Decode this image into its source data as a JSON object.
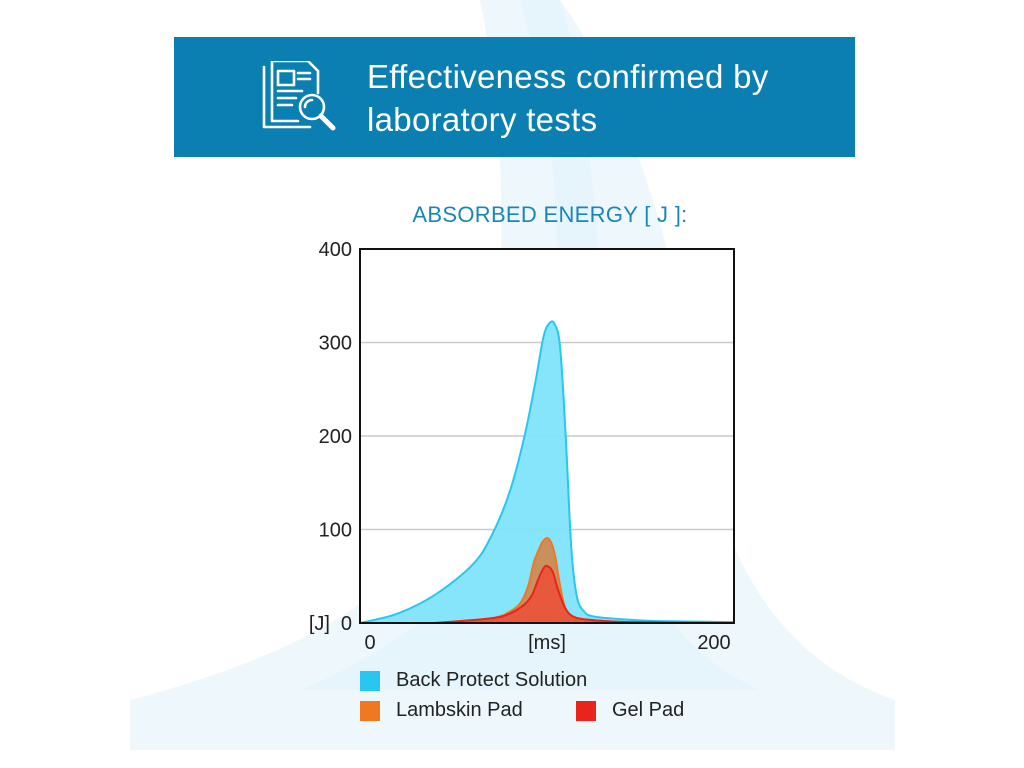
{
  "banner": {
    "title": "Effectiveness confirmed by laboratory tests",
    "icon": "document-magnifier-icon",
    "color": "#0b7fb2"
  },
  "chart_data": {
    "type": "area",
    "title": "ABSORBED ENERGY [ J ]:",
    "xlabel": "[ms]",
    "ylabel": "[J]",
    "xlim": [
      0,
      200
    ],
    "ylim": [
      0,
      400
    ],
    "x_ticks": [
      "0",
      "200"
    ],
    "y_ticks": [
      "0",
      "100",
      "200",
      "300",
      "400"
    ],
    "grid": true,
    "legend_position": "bottom",
    "series": [
      {
        "name": "Back Protect Solution",
        "color": "#29c7ef",
        "fill": "#7fe3fb",
        "x": [
          0,
          20,
          40,
          60,
          70,
          80,
          88,
          94,
          98,
          101,
          104,
          107,
          110,
          113,
          116,
          120,
          125,
          140,
          160,
          200
        ],
        "y": [
          0,
          10,
          30,
          62,
          92,
          140,
          200,
          260,
          305,
          320,
          320,
          295,
          200,
          80,
          28,
          12,
          7,
          4,
          2,
          1
        ]
      },
      {
        "name": "Lambskin Pad",
        "color": "#f07820",
        "fill": "#cc8b55",
        "x": [
          40,
          70,
          80,
          86,
          90,
          93,
          96,
          98,
          101,
          104,
          107,
          110,
          115,
          125,
          145,
          200
        ],
        "y": [
          0,
          5,
          12,
          22,
          40,
          65,
          80,
          88,
          90,
          75,
          40,
          15,
          6,
          3,
          1,
          0
        ]
      },
      {
        "name": "Gel Pad",
        "color": "#e8241c",
        "fill": "#e9553a",
        "x": [
          40,
          70,
          80,
          88,
          92,
          95,
          98,
          100,
          103,
          106,
          110,
          115,
          125,
          145,
          200
        ],
        "y": [
          0,
          5,
          10,
          20,
          30,
          45,
          58,
          61,
          55,
          35,
          15,
          6,
          3,
          1,
          0
        ]
      }
    ]
  }
}
